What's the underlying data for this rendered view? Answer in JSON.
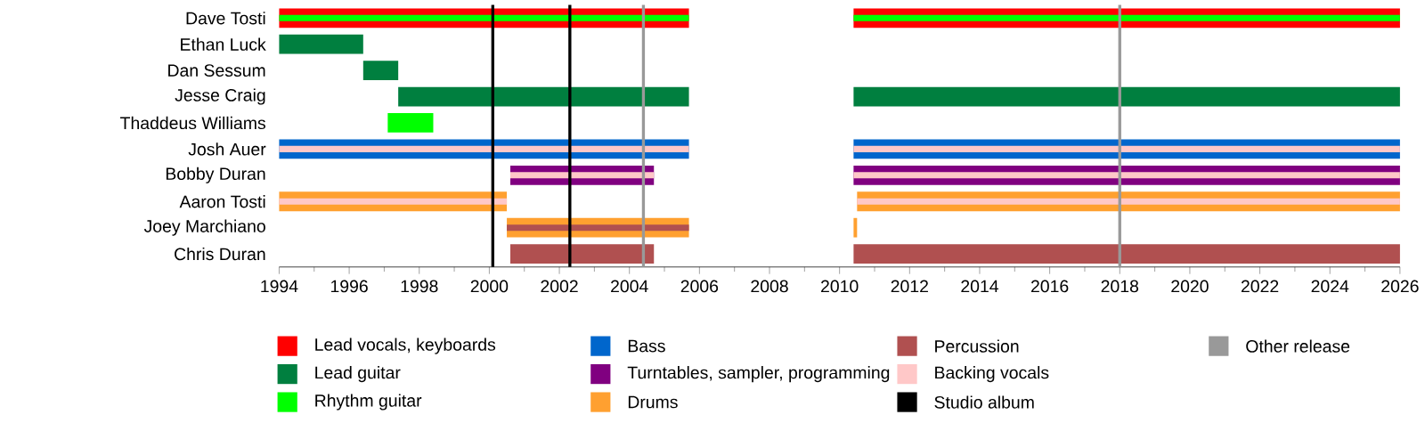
{
  "chart_data": {
    "type": "bar",
    "orientation": "horizontal",
    "categories": [
      "Dave Tosti",
      "Ethan Luck",
      "Dan Sessum",
      "Jesse Craig",
      "Thaddeus Williams",
      "Josh Auer",
      "Bobby Duran",
      "Aaron Tosti",
      "Joey Marchiano",
      "Chris Duran"
    ],
    "series": [
      {
        "name": "Lead vocals, keyboards",
        "color": "#ff0000",
        "base": [
          1994,
          null,
          null,
          null,
          null,
          null,
          null,
          null,
          null,
          null
        ],
        "values": [
          11.7,
          null,
          null,
          null,
          null,
          null,
          null,
          null,
          null,
          null
        ]
      },
      {
        "name": "Lead guitar",
        "color": "#007f3f",
        "base": [
          null,
          1994,
          1996.4,
          1997.4,
          null,
          null,
          null,
          null,
          null,
          null
        ],
        "values": [
          null,
          2.4,
          1.0,
          8.3,
          null,
          null,
          null,
          null,
          null,
          null
        ]
      },
      {
        "name": "Rhythm guitar",
        "color": "#00ff00",
        "base": [
          1994,
          null,
          null,
          null,
          1997.1,
          null,
          null,
          null,
          null,
          null
        ],
        "values": [
          11.7,
          null,
          null,
          null,
          1.3,
          null,
          null,
          null,
          null,
          null
        ]
      },
      {
        "name": "Bass",
        "color": "#0066cc",
        "base": [
          null,
          null,
          null,
          null,
          null,
          1994,
          null,
          null,
          null,
          null
        ],
        "values": [
          null,
          null,
          null,
          null,
          null,
          11.7,
          null,
          null,
          null,
          null
        ]
      },
      {
        "name": "Turntables, sampler, programming",
        "color": "#800080",
        "base": [
          null,
          null,
          null,
          null,
          null,
          null,
          2000.6,
          null,
          null,
          null
        ],
        "values": [
          null,
          null,
          null,
          null,
          null,
          null,
          4.1,
          null,
          null,
          null
        ]
      },
      {
        "name": "Drums",
        "color": "#ffa030",
        "base": [
          null,
          null,
          null,
          null,
          null,
          null,
          null,
          1994,
          2000.5,
          null
        ],
        "values": [
          null,
          null,
          null,
          null,
          null,
          null,
          null,
          6.5,
          5.2,
          null
        ]
      },
      {
        "name": "Percussion",
        "color": "#b05050",
        "base": [
          null,
          null,
          null,
          null,
          null,
          null,
          null,
          null,
          2000.5,
          2000.6
        ],
        "values": [
          null,
          null,
          null,
          null,
          null,
          null,
          null,
          null,
          5.2,
          4.1
        ]
      },
      {
        "name": "Backing vocals",
        "color": "#ffc8c8",
        "base": [
          null,
          null,
          null,
          null,
          null,
          1994,
          2000.6,
          1994,
          null,
          null
        ],
        "values": [
          null,
          null,
          null,
          null,
          null,
          11.7,
          4.1,
          6.5,
          null,
          null
        ]
      },
      {
        "color": "#ff0000",
        "base": [
          2010.4,
          null,
          null,
          null,
          null,
          null,
          null,
          null,
          null,
          null
        ],
        "values": [
          15.6,
          null,
          null,
          null,
          null,
          null,
          null,
          null,
          null,
          null
        ]
      },
      {
        "color": "#007f3f",
        "base": [
          null,
          null,
          null,
          2010.4,
          null,
          null,
          null,
          null,
          null,
          null
        ],
        "values": [
          null,
          null,
          null,
          15.6,
          null,
          null,
          null,
          null,
          null,
          null
        ]
      },
      {
        "color": "#00ff00",
        "base": [
          2010.4,
          null,
          null,
          null,
          null,
          null,
          null,
          null,
          null,
          null
        ],
        "values": [
          15.6,
          null,
          null,
          null,
          null,
          null,
          null,
          null,
          null,
          null
        ]
      },
      {
        "color": "#0066cc",
        "base": [
          null,
          null,
          null,
          null,
          null,
          2010.4,
          null,
          null,
          null,
          null
        ],
        "values": [
          null,
          null,
          null,
          null,
          null,
          15.6,
          null,
          null,
          null,
          null
        ]
      },
      {
        "color": "#800080",
        "base": [
          null,
          null,
          null,
          null,
          null,
          null,
          2010.4,
          null,
          null,
          null
        ],
        "values": [
          null,
          null,
          null,
          null,
          null,
          null,
          15.6,
          null,
          null,
          null
        ]
      },
      {
        "color": "#ffa030",
        "base": [
          null,
          null,
          null,
          null,
          null,
          null,
          null,
          2010.5,
          2010.4,
          null
        ],
        "values": [
          null,
          null,
          null,
          null,
          null,
          null,
          null,
          15.5,
          0.1,
          null
        ]
      },
      {
        "color": "#b05050",
        "base": [
          null,
          null,
          null,
          null,
          null,
          null,
          null,
          null,
          null,
          2010.4
        ],
        "values": [
          null,
          null,
          null,
          null,
          null,
          null,
          null,
          null,
          null,
          15.6
        ]
      },
      {
        "color": "#ffc8c8",
        "base": [
          null,
          null,
          null,
          null,
          null,
          2010.4,
          2010.4,
          2010.5,
          null,
          null
        ],
        "values": [
          null,
          null,
          null,
          null,
          null,
          15.6,
          15.6,
          15.5,
          null,
          null
        ]
      }
    ],
    "xlim": [
      1994,
      2026
    ],
    "xticks": [
      1994,
      1996,
      1998,
      2000,
      2002,
      2004,
      2006,
      2008,
      2010,
      2012,
      2014,
      2016,
      2018,
      2020,
      2022,
      2024,
      2026
    ],
    "ref_lines": [
      {
        "axis": "x",
        "value": 2000.1,
        "label": "Studio album",
        "color": "#000000"
      },
      {
        "axis": "x",
        "value": 2002.3,
        "color": "#000000"
      },
      {
        "axis": "x",
        "value": 2004.4,
        "label": "Other release",
        "color": "#999999"
      },
      {
        "axis": "x",
        "value": 2018,
        "color": "#999999"
      }
    ],
    "legend": "bottom"
  }
}
